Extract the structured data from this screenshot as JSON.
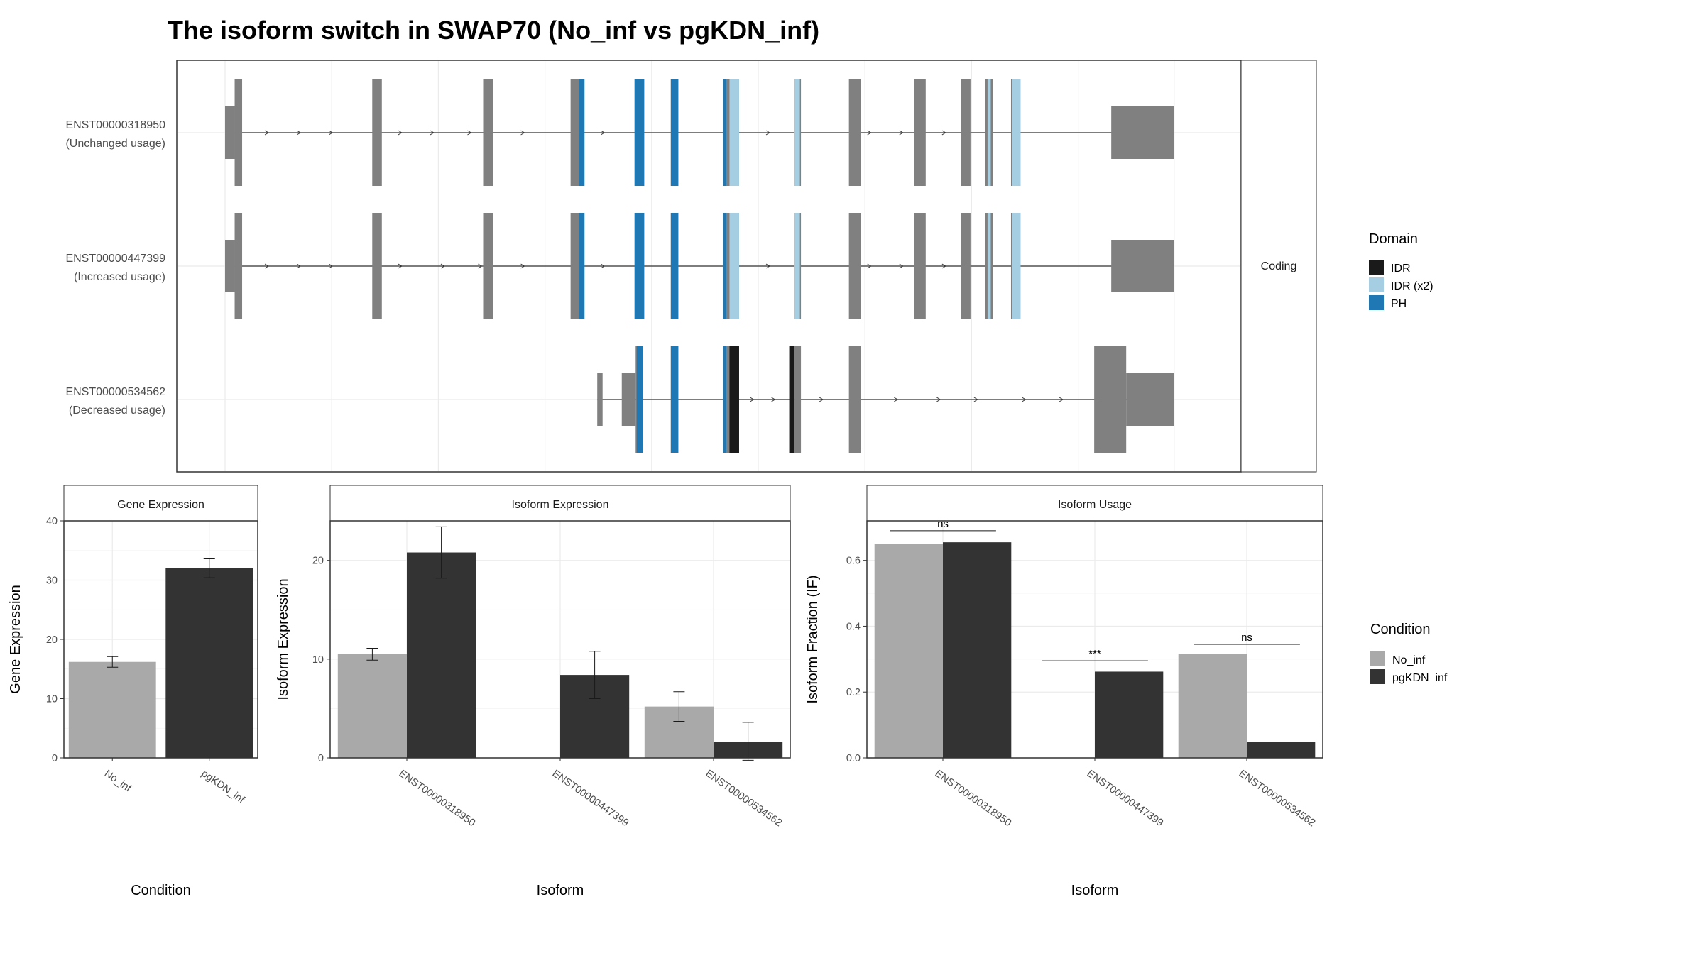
{
  "title": "The isoform switch in SWAP70 (No_inf vs pgKDN_inf)",
  "colors": {
    "exon": "#808080",
    "IDR": "#1a1a1a",
    "IDR (x2)": "#a6cee3",
    "PH": "#1f78b4",
    "No_inf": "#a9a9a9",
    "pgKDN_inf": "#333333"
  },
  "structure": {
    "strip_label": "Coding",
    "transcripts": [
      {
        "id": "ENST00000318950",
        "usage": "(Unchanged usage)",
        "utr_blocks": [
          [
            0.0,
            0.9
          ],
          [
            83.1,
            89.0
          ]
        ],
        "exons": [
          [
            0.9,
            1.6
          ],
          [
            13.8,
            14.7
          ],
          [
            24.2,
            25.1
          ],
          [
            32.4,
            33.7
          ],
          [
            38.4,
            39.3
          ],
          [
            41.8,
            42.5
          ],
          [
            46.7,
            48.2
          ],
          [
            53.4,
            54.0
          ],
          [
            58.5,
            59.6
          ],
          [
            64.6,
            65.7
          ],
          [
            69.0,
            69.9
          ],
          [
            71.3,
            72.0
          ],
          [
            73.7,
            74.6
          ]
        ],
        "domains": [
          {
            "name": "PH",
            "ranges": [
              [
                33.2,
                33.7
              ],
              [
                38.4,
                39.3
              ],
              [
                41.8,
                42.5
              ],
              [
                46.7,
                47.0
              ]
            ]
          },
          {
            "name": "IDR (x2)",
            "ranges": [
              [
                47.3,
                48.2
              ],
              [
                53.4,
                53.9
              ],
              [
                71.5,
                71.8
              ],
              [
                73.8,
                74.6
              ]
            ]
          }
        ],
        "arrows": [
          4,
          7,
          10,
          16.5,
          19.5,
          23,
          28,
          35.5,
          51,
          60.5,
          63.5,
          67.5
        ]
      },
      {
        "id": "ENST00000447399",
        "usage": "(Increased usage)",
        "utr_blocks": [
          [
            0.0,
            0.9
          ],
          [
            83.1,
            89.0
          ]
        ],
        "exons": [
          [
            0.9,
            1.6
          ],
          [
            13.8,
            14.7
          ],
          [
            24.2,
            25.1
          ],
          [
            32.4,
            33.7
          ],
          [
            38.4,
            39.3
          ],
          [
            41.8,
            42.5
          ],
          [
            46.7,
            48.2
          ],
          [
            53.4,
            54.0
          ],
          [
            58.5,
            59.6
          ],
          [
            64.6,
            65.7
          ],
          [
            69.0,
            69.9
          ],
          [
            71.3,
            72.0
          ],
          [
            73.7,
            74.6
          ]
        ],
        "domains": [
          {
            "name": "PH",
            "ranges": [
              [
                33.2,
                33.7
              ],
              [
                38.4,
                39.3
              ],
              [
                41.8,
                42.5
              ],
              [
                46.7,
                47.0
              ]
            ]
          },
          {
            "name": "IDR (x2)",
            "ranges": [
              [
                47.3,
                48.2
              ],
              [
                53.4,
                53.9
              ],
              [
                71.5,
                71.8
              ],
              [
                73.8,
                74.6
              ]
            ]
          }
        ],
        "arrows": [
          4,
          7,
          10,
          16.5,
          20.5,
          24,
          28,
          35.5,
          51,
          60.5,
          63.5,
          67.5
        ]
      },
      {
        "id": "ENST00000534562",
        "usage": "(Decreased usage)",
        "utr_blocks": [
          [
            34.9,
            35.4
          ],
          [
            37.2,
            38.5
          ],
          [
            84.5,
            89.0
          ]
        ],
        "exons": [
          [
            38.5,
            39.2
          ],
          [
            41.8,
            42.5
          ],
          [
            46.7,
            48.2
          ],
          [
            53.4,
            54.0
          ],
          [
            58.5,
            59.6
          ],
          [
            81.5,
            82.1
          ],
          [
            82.1,
            84.5
          ]
        ],
        "domains": [
          {
            "name": "PH",
            "ranges": [
              [
                38.6,
                39.2
              ],
              [
                41.8,
                42.5
              ],
              [
                46.7,
                47.0
              ]
            ]
          },
          {
            "name": "IDR",
            "ranges": [
              [
                47.3,
                48.2
              ],
              [
                52.9,
                53.4
              ]
            ]
          }
        ],
        "arrows": [
          49.5,
          51.5,
          56,
          63,
          67,
          70.5,
          75,
          78.5
        ]
      }
    ]
  },
  "legends": {
    "domain": {
      "title": "Domain",
      "items": [
        "IDR",
        "IDR (x2)",
        "PH"
      ]
    },
    "condition": {
      "title": "Condition",
      "items": [
        "No_inf",
        "pgKDN_inf"
      ]
    }
  },
  "chart_data": [
    {
      "type": "bar",
      "title": "Gene Expression",
      "xlabel": "Condition",
      "ylabel": "Gene Expression",
      "ylim": [
        0,
        40
      ],
      "yticks": [
        0,
        10,
        20,
        30,
        40
      ],
      "categories": [
        "No_inf",
        "pgKDN_inf"
      ],
      "series": [
        {
          "name": "No_inf",
          "values": [
            16.2,
            null
          ],
          "errors": [
            0.9,
            null
          ]
        },
        {
          "name": "pgKDN_inf",
          "values": [
            null,
            32.0
          ],
          "errors": [
            null,
            1.6
          ]
        }
      ]
    },
    {
      "type": "bar",
      "title": "Isoform Expression",
      "xlabel": "Isoform",
      "ylabel": "Isoform Expression",
      "ylim": [
        0,
        24
      ],
      "yticks": [
        0,
        10,
        20
      ],
      "categories": [
        "ENST00000318950",
        "ENST00000447399",
        "ENST00000534562"
      ],
      "series": [
        {
          "name": "No_inf",
          "values": [
            10.5,
            0.0,
            5.2
          ],
          "errors": [
            0.6,
            0.0,
            1.5
          ]
        },
        {
          "name": "pgKDN_inf",
          "values": [
            20.8,
            8.4,
            1.6
          ],
          "errors": [
            2.6,
            2.4,
            2.0
          ]
        }
      ]
    },
    {
      "type": "bar",
      "title": "Isoform Usage",
      "xlabel": "Isoform",
      "ylabel": "Isoform Fraction (IF)",
      "ylim": [
        0,
        0.72
      ],
      "yticks": [
        0.0,
        0.2,
        0.4,
        0.6
      ],
      "categories": [
        "ENST00000318950",
        "ENST00000447399",
        "ENST00000534562"
      ],
      "series": [
        {
          "name": "No_inf",
          "values": [
            0.65,
            0.0,
            0.315
          ]
        },
        {
          "name": "pgKDN_inf",
          "values": [
            0.655,
            0.262,
            0.048
          ]
        }
      ],
      "significance": [
        {
          "label": "ns",
          "y": 0.69
        },
        {
          "label": "***",
          "y": 0.295
        },
        {
          "label": "ns",
          "y": 0.345
        }
      ]
    }
  ]
}
